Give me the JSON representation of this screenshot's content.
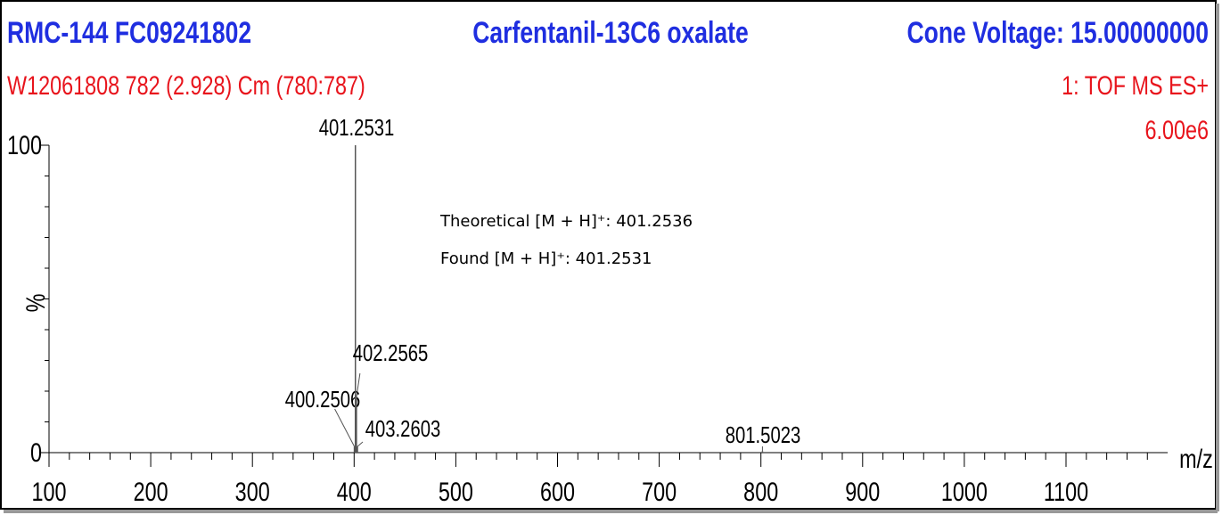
{
  "chart_data": {
    "type": "stem",
    "title": "Carfentanil-13C6 oxalate",
    "sample_id": "RMC-144 FC09241802",
    "cone_voltage": "Cone Voltage: 15.00000000",
    "scan_info": "W12061808 782 (2.928) Cm (780:787)",
    "instrument": "1: TOF MS ES+",
    "intensity_max": "6.00e6",
    "x_label": "m/z",
    "y_label": "%",
    "annotations": [
      "Theoretical [M + H]⁺: 401.2536",
      "Found [M + H]⁺: 401.2531"
    ],
    "x": [
      400.2506,
      401.2531,
      402.2565,
      403.2603,
      801.5023
    ],
    "values": [
      2,
      100,
      18,
      2,
      0.5
    ],
    "color": "#555555",
    "xlim": [
      100,
      1200
    ],
    "ylim": [
      0,
      100
    ],
    "xticks": [
      100,
      200,
      300,
      400,
      500,
      600,
      700,
      800,
      900,
      1000,
      1100
    ],
    "x_minor_ticks": [
      120,
      140,
      160,
      180,
      220,
      240,
      260,
      280,
      320,
      340,
      360,
      380,
      420,
      440,
      460,
      480,
      520,
      540,
      560,
      580,
      620,
      640,
      660,
      680,
      720,
      740,
      760,
      780,
      820,
      840,
      860,
      880,
      920,
      940,
      960,
      980,
      1020,
      1040,
      1060,
      1080,
      1120,
      1140,
      1160,
      1180
    ],
    "yticks": [
      0,
      100
    ],
    "y_minor_ticks": [
      10,
      20,
      30,
      40,
      50,
      60,
      70,
      80,
      90
    ]
  }
}
